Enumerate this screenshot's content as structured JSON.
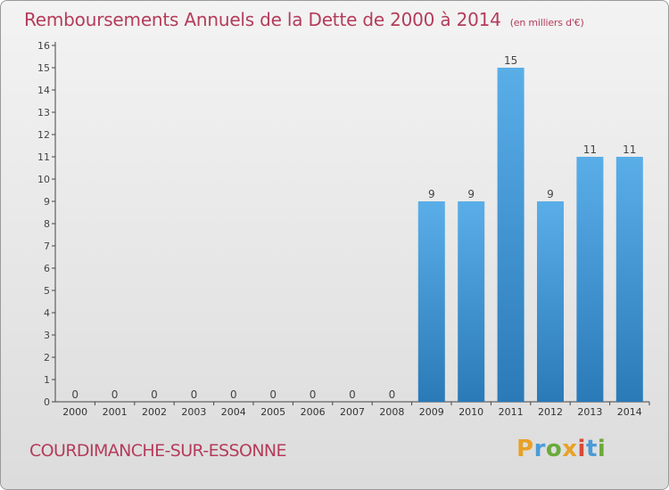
{
  "header": {
    "title": "Remboursements Annuels de la Dette de 2000 à 2014",
    "subtitle": "(en milliers d'€)"
  },
  "footer": {
    "commune": "COURDIMANCHE-SUR-ESSONNE",
    "logo_letters": [
      "P",
      "r",
      "o",
      "x",
      "i",
      "t",
      "i"
    ]
  },
  "colors": {
    "bar_top": "#5aaee8",
    "bar_bottom": "#2a7ab8",
    "accent": "#b43c5a"
  },
  "chart_data": {
    "type": "bar",
    "categories": [
      "2000",
      "2001",
      "2002",
      "2003",
      "2004",
      "2005",
      "2006",
      "2007",
      "2008",
      "2009",
      "2010",
      "2011",
      "2012",
      "2013",
      "2014"
    ],
    "values": [
      0,
      0,
      0,
      0,
      0,
      0,
      0,
      0,
      0,
      9,
      9,
      15,
      9,
      11,
      11
    ],
    "data_labels": [
      "0",
      "0",
      "0",
      "0",
      "0",
      "0",
      "0",
      "0",
      "0",
      "9",
      "9",
      "15",
      "9",
      "11",
      "11"
    ],
    "yticks": [
      "0",
      "1",
      "2",
      "3",
      "4",
      "5",
      "6",
      "7",
      "8",
      "9",
      "10",
      "11",
      "12",
      "13",
      "14",
      "15",
      "16"
    ],
    "ylim": [
      0,
      16
    ],
    "grid": false,
    "legend": "none"
  }
}
